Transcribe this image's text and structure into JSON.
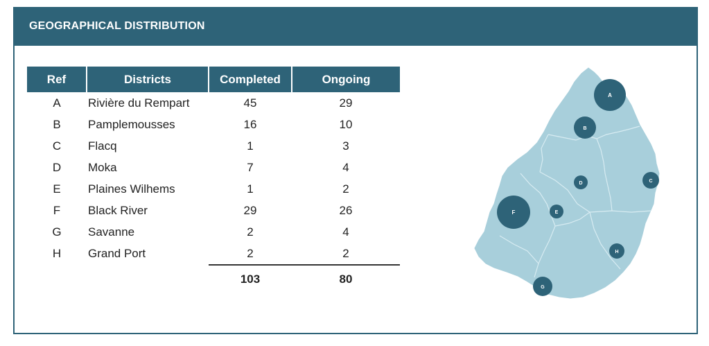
{
  "header": {
    "title": "GEOGRAPHICAL DISTRIBUTION"
  },
  "table": {
    "columns": [
      "Ref",
      "Districts",
      "Completed",
      "Ongoing"
    ],
    "rows": [
      {
        "ref": "A",
        "district": "Rivière du Rempart",
        "completed": "45",
        "ongoing": "29"
      },
      {
        "ref": "B",
        "district": "Pamplemousses",
        "completed": "16",
        "ongoing": "10"
      },
      {
        "ref": "C",
        "district": "Flacq",
        "completed": "1",
        "ongoing": "3"
      },
      {
        "ref": "D",
        "district": "Moka",
        "completed": "7",
        "ongoing": "4"
      },
      {
        "ref": "E",
        "district": "Plaines Wilhems",
        "completed": "1",
        "ongoing": "2"
      },
      {
        "ref": "F",
        "district": "Black River",
        "completed": "29",
        "ongoing": "26"
      },
      {
        "ref": "G",
        "district": "Savanne",
        "completed": "2",
        "ongoing": "4"
      },
      {
        "ref": "H",
        "district": "Grand Port",
        "completed": "2",
        "ongoing": "2"
      }
    ],
    "totals": {
      "completed": "103",
      "ongoing": "80"
    }
  },
  "map": {
    "colors": {
      "land": "#a8cfdb",
      "border": "#d8ecf2",
      "marker": "#2e6378",
      "marker_text": "#ffffff"
    },
    "markers": [
      "A",
      "B",
      "C",
      "D",
      "E",
      "F",
      "G",
      "H"
    ]
  }
}
